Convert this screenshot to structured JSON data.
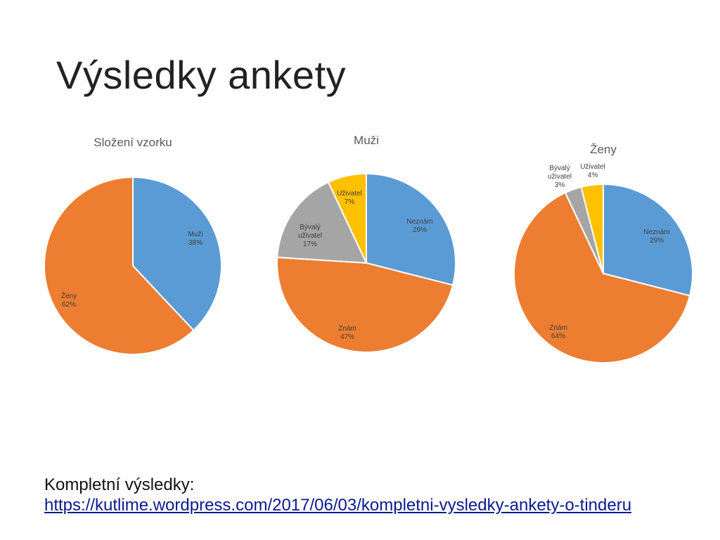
{
  "slide": {
    "title": "Výsledky ankety",
    "footer_label": "Kompletní výsledky:",
    "footer_link": "https://kutlime.wordpress.com/2017/06/03/kompletni-vysledky-ankety-o-tinderu"
  },
  "chart_data": [
    {
      "type": "pie",
      "title": "Složení vzorku",
      "slices": [
        {
          "label": "Muži",
          "value": 38,
          "display": "38%",
          "color": "#5b9bd5"
        },
        {
          "label": "Ženy",
          "value": 62,
          "display": "62%",
          "color": "#ed7d31"
        }
      ]
    },
    {
      "type": "pie",
      "title": "Muži",
      "slices": [
        {
          "label": "Neznám",
          "value": 29,
          "display": "29%",
          "color": "#5b9bd5"
        },
        {
          "label": "Znám",
          "value": 47,
          "display": "47%",
          "color": "#ed7d31"
        },
        {
          "label": "Bývalý uživatel",
          "value": 17,
          "display": "17%",
          "color": "#a5a5a5"
        },
        {
          "label": "Uživatel",
          "value": 7,
          "display": "7%",
          "color": "#ffc000"
        }
      ]
    },
    {
      "type": "pie",
      "title": "Ženy",
      "slices": [
        {
          "label": "Neznám",
          "value": 29,
          "display": "29%",
          "color": "#5b9bd5"
        },
        {
          "label": "Znám",
          "value": 64,
          "display": "64%",
          "color": "#ed7d31"
        },
        {
          "label": "Bývalý uživatel",
          "value": 3,
          "display": "3%",
          "color": "#a5a5a5"
        },
        {
          "label": "Uživatel",
          "value": 4,
          "display": "4%",
          "color": "#ffc000"
        }
      ]
    }
  ]
}
